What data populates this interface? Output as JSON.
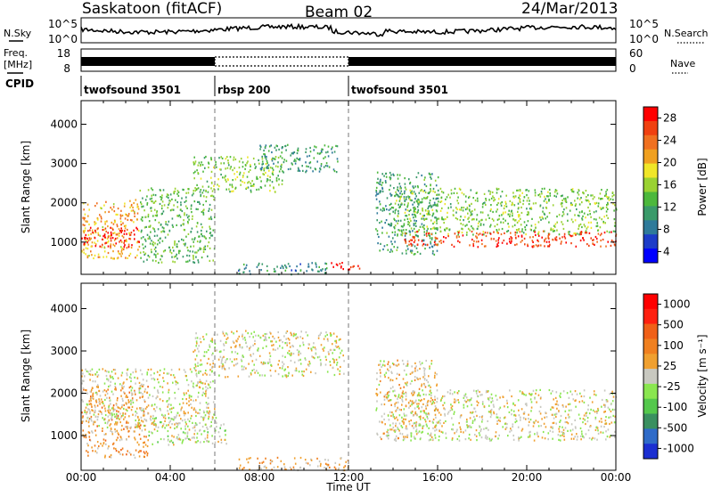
{
  "header": {
    "station": "Saskatoon (fitACF)",
    "beam": "Beam 02",
    "date": "24/Mar/2013"
  },
  "left_labels": {
    "nsky": "N.Sky",
    "freq_line1": "Freq.",
    "freq_line2": "[MHz]",
    "cpid": "CPID"
  },
  "right_labels": {
    "nsearch": "N.Search",
    "nave": "Nave"
  },
  "nsky_panel": {
    "left_ticks": [
      "10^5",
      "10^0"
    ],
    "right_ticks": [
      "10^5",
      "10^0"
    ]
  },
  "freq_panel": {
    "left_ticks": [
      "18",
      "8"
    ],
    "right_ticks": [
      "60",
      "0"
    ]
  },
  "cpid_segments": [
    {
      "label": "twofsound 3501",
      "start_hour": 0,
      "end_hour": 6
    },
    {
      "label": "rbsp 200",
      "start_hour": 6,
      "end_hour": 12
    },
    {
      "label": "twofsound 3501",
      "start_hour": 12,
      "end_hour": 24
    }
  ],
  "colors": {
    "power": [
      "#0000ff",
      "#1d3cc8",
      "#2f7a9a",
      "#3a9a6a",
      "#4cb83c",
      "#9ad232",
      "#f0e628",
      "#f0a020",
      "#f07020",
      "#f04010",
      "#ff0000"
    ],
    "velocity": [
      "#1b2fd1",
      "#2f6bc8",
      "#3a9060",
      "#54c84c",
      "#8ae650",
      "#c8c8c0",
      "#f0a030",
      "#f08020",
      "#f06018",
      "#ff2010",
      "#ff0000"
    ]
  },
  "chart_data": [
    {
      "type": "heatmap",
      "name": "power",
      "xlabel": "",
      "ylabel": "Slant Range [km]",
      "xlim": [
        0,
        24
      ],
      "ylim": [
        180,
        4600
      ],
      "x_ticks": [
        "00:00",
        "04:00",
        "08:00",
        "12:00",
        "16:00",
        "20:00",
        "00:00"
      ],
      "y_ticks": [
        1000,
        2000,
        3000,
        4000
      ],
      "colorbar": {
        "label": "Power [dB]",
        "ticks": [
          "28",
          "24",
          "20",
          "16",
          "12",
          "8",
          "4"
        ],
        "range": [
          0,
          30
        ]
      },
      "echo_regions": [
        {
          "t_start": 0.0,
          "t_end": 2.6,
          "range_low": 600,
          "range_high": 2100,
          "power_db": 20
        },
        {
          "t_start": 0.0,
          "t_end": 2.6,
          "range_low": 900,
          "range_high": 1400,
          "power_db": 28
        },
        {
          "t_start": 2.6,
          "t_end": 6.0,
          "range_low": 500,
          "range_high": 2400,
          "power_db": 12
        },
        {
          "t_start": 5.0,
          "t_end": 9.0,
          "range_low": 2300,
          "range_high": 3200,
          "power_db": 14
        },
        {
          "t_start": 8.0,
          "t_end": 11.6,
          "range_low": 2800,
          "range_high": 3500,
          "power_db": 10
        },
        {
          "t_start": 7.0,
          "t_end": 11.0,
          "range_low": 200,
          "range_high": 500,
          "power_db": 8
        },
        {
          "t_start": 11.2,
          "t_end": 12.6,
          "range_low": 300,
          "range_high": 500,
          "power_db": 28
        },
        {
          "t_start": 13.2,
          "t_end": 16.0,
          "range_low": 700,
          "range_high": 2800,
          "power_db": 10
        },
        {
          "t_start": 14.0,
          "t_end": 24.0,
          "range_low": 1200,
          "range_high": 2400,
          "power_db": 14
        },
        {
          "t_start": 14.5,
          "t_end": 24.0,
          "range_low": 900,
          "range_high": 1300,
          "power_db": 26
        }
      ]
    },
    {
      "type": "heatmap",
      "name": "velocity",
      "xlabel": "Time UT",
      "ylabel": "Slant Range [km]",
      "xlim": [
        0,
        24
      ],
      "ylim": [
        180,
        4600
      ],
      "x_ticks": [
        "00:00",
        "04:00",
        "08:00",
        "12:00",
        "16:00",
        "20:00",
        "00:00"
      ],
      "y_ticks": [
        1000,
        2000,
        3000,
        4000
      ],
      "colorbar": {
        "label": "Velocity [m s⁻¹]",
        "ticks": [
          "1000",
          "500",
          "100",
          "25",
          "-25",
          "-100",
          "-500",
          "-1000"
        ],
        "range": [
          -1200,
          1200
        ]
      },
      "echo_regions": [
        {
          "t_start": 0.0,
          "t_end": 3.0,
          "range_low": 500,
          "range_high": 2200,
          "velocity": -300
        },
        {
          "t_start": 0.0,
          "t_end": 6.0,
          "range_low": 1200,
          "range_high": 2600,
          "velocity": 0
        },
        {
          "t_start": 5.0,
          "t_end": 11.8,
          "range_low": 2400,
          "range_high": 3500,
          "velocity": 0
        },
        {
          "t_start": 3.0,
          "t_end": 6.5,
          "range_low": 800,
          "range_high": 1500,
          "velocity": 100
        },
        {
          "t_start": 7.0,
          "t_end": 12.0,
          "range_low": 200,
          "range_high": 500,
          "velocity": -200
        },
        {
          "t_start": 13.2,
          "t_end": 16.0,
          "range_low": 900,
          "range_high": 2800,
          "velocity": -100
        },
        {
          "t_start": 14.0,
          "t_end": 24.0,
          "range_low": 900,
          "range_high": 2100,
          "velocity": 0
        }
      ]
    }
  ]
}
